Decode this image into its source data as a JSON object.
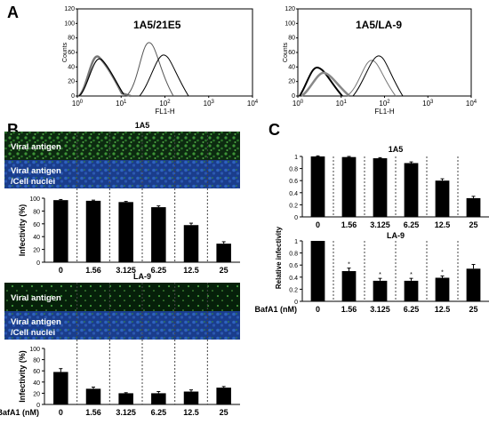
{
  "figure": {
    "panel_letters": [
      "A",
      "B",
      "C"
    ]
  },
  "panel_a": {
    "plots": [
      {
        "title": "1A5/21E5",
        "ylabel": "Counts",
        "xlabel": "FL1-H",
        "yticks": [
          "0",
          "20",
          "40",
          "60",
          "80",
          "100",
          "120"
        ],
        "xticks": [
          "10^0",
          "10^1",
          "10^2",
          "10^3",
          "10^4"
        ]
      },
      {
        "title": "1A5/LA-9",
        "ylabel": "Counts",
        "xlabel": "FL1-H",
        "yticks": [
          "0",
          "20",
          "40",
          "60",
          "80",
          "100",
          "120"
        ],
        "xticks": [
          "10^0",
          "10^1",
          "10^2",
          "10^3",
          "10^4"
        ]
      }
    ]
  },
  "panel_b": {
    "row_labels": {
      "viral_antigen": "Viral antigen",
      "merge_line1": "Viral antigen",
      "merge_line2": "/Cell nuclei"
    },
    "colors": {
      "antigen_green": "#2e8a2a",
      "nuclei_blue": "#1f4aa0"
    }
  },
  "panel_c": {
    "ylabel": "Relative infectivity"
  },
  "chart_data": [
    {
      "type": "bar",
      "title": "1A5",
      "ylabel": "Infectivity (%)",
      "xlabel": "",
      "categories": [
        "0",
        "1.56",
        "3.125",
        "6.25",
        "12.5",
        "25"
      ],
      "values": [
        97,
        96,
        94,
        86,
        58,
        29
      ],
      "errors": [
        1,
        1,
        1,
        2,
        3,
        3
      ],
      "ylim": [
        0,
        100
      ],
      "yticks": [
        "0",
        "20",
        "40",
        "60",
        "80",
        "100"
      ]
    },
    {
      "type": "bar",
      "title": "LA-9",
      "ylabel": "Infectivity (%)",
      "xlabel": "BafA1 (nM)",
      "categories": [
        "0",
        "1.56",
        "3.125",
        "6.25",
        "12.5",
        "25"
      ],
      "values": [
        58,
        28,
        20,
        20,
        23,
        30
      ],
      "errors": [
        6,
        3,
        1,
        3,
        3,
        2
      ],
      "ylim": [
        0,
        100
      ],
      "yticks": [
        "0",
        "20",
        "40",
        "60",
        "80",
        "100"
      ]
    },
    {
      "type": "bar",
      "title": "1A5",
      "ylabel": "Relative Infectivity",
      "xlabel": "",
      "categories": [
        "0",
        "1.56",
        "3.125",
        "6.25",
        "12.5",
        "25"
      ],
      "values": [
        1.0,
        0.99,
        0.97,
        0.89,
        0.6,
        0.31
      ],
      "errors": [
        0.01,
        0.01,
        0.01,
        0.02,
        0.03,
        0.03
      ],
      "ylim": [
        0,
        1
      ],
      "yticks": [
        "0",
        "0.2",
        "0.4",
        "0.6",
        "0.8",
        "1"
      ]
    },
    {
      "type": "bar",
      "title": "LA-9",
      "ylabel": "",
      "xlabel": "BafA1 (nM)",
      "categories": [
        "0",
        "1.56",
        "3.125",
        "6.25",
        "12.5",
        "25"
      ],
      "values": [
        1.0,
        0.5,
        0.34,
        0.34,
        0.39,
        0.54
      ],
      "errors": [
        0.0,
        0.05,
        0.04,
        0.04,
        0.03,
        0.07
      ],
      "significance": [
        "",
        "*",
        "*",
        "*",
        "*",
        ""
      ],
      "ylim": [
        0,
        1
      ],
      "yticks": [
        "0",
        "0.2",
        "0.4",
        "0.6",
        "0.8",
        "1"
      ]
    }
  ]
}
